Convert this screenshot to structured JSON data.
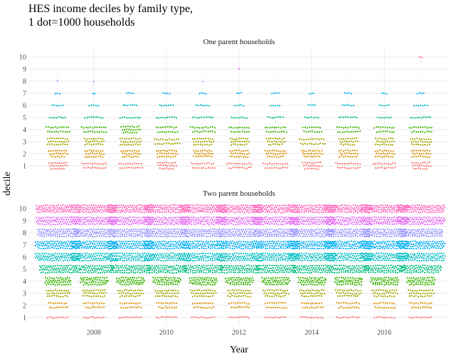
{
  "chart_data": {
    "type": "scatter",
    "title": "HES income deciles by family type,\n1 dot=1000 households",
    "xlabel": "Year",
    "ylabel": "decile",
    "x_ticks": [
      2008,
      2010,
      2012,
      2014,
      2016
    ],
    "years": [
      2007,
      2008,
      2009,
      2010,
      2011,
      2012,
      2013,
      2014,
      2015,
      2016,
      2017
    ],
    "y_ticks": [
      1,
      2,
      3,
      4,
      5,
      6,
      7,
      8,
      9,
      10
    ],
    "xlim": [
      2006.2,
      2017.8
    ],
    "ylim": [
      0.4,
      10.6
    ],
    "grid": true,
    "legend": "none",
    "decile_colors": [
      "#F8766D",
      "#D89000",
      "#A3A500",
      "#39B600",
      "#00BF7D",
      "#00BFC4",
      "#00B0F6",
      "#9590FF",
      "#E76BF3",
      "#FF62BC"
    ],
    "panels": [
      {
        "name": "One parent households",
        "counts_per_decile_per_year": [
          [
            25,
            25,
            30,
            22,
            8,
            6,
            3,
            1,
            0,
            0
          ],
          [
            23,
            27,
            27,
            23,
            9,
            5,
            2,
            1,
            0,
            0
          ],
          [
            22,
            26,
            30,
            25,
            10,
            7,
            4,
            0,
            0,
            0
          ],
          [
            25,
            29,
            24,
            20,
            10,
            7,
            4,
            0,
            0,
            0
          ],
          [
            22,
            27,
            29,
            23,
            10,
            7,
            4,
            1,
            0,
            0
          ],
          [
            23,
            27,
            26,
            19,
            8,
            5,
            3,
            0,
            1,
            0
          ],
          [
            23,
            28,
            25,
            20,
            8,
            5,
            4,
            0,
            0,
            0
          ],
          [
            25,
            28,
            24,
            18,
            7,
            4,
            3,
            0,
            0,
            0
          ],
          [
            23,
            27,
            25,
            22,
            9,
            6,
            4,
            0,
            0,
            0
          ],
          [
            21,
            27,
            27,
            19,
            7,
            5,
            3,
            0,
            0,
            0
          ],
          [
            25,
            27,
            29,
            21,
            10,
            7,
            4,
            0,
            0,
            2
          ]
        ]
      },
      {
        "name": "Two parent households",
        "counts_per_decile_per_year": [
          [
            10,
            18,
            32,
            48,
            68,
            82,
            82,
            75,
            80,
            80
          ],
          [
            10,
            19,
            33,
            50,
            70,
            84,
            84,
            76,
            82,
            82
          ],
          [
            11,
            20,
            34,
            50,
            71,
            85,
            84,
            77,
            82,
            84
          ],
          [
            10,
            19,
            33,
            49,
            71,
            84,
            84,
            76,
            82,
            83
          ],
          [
            11,
            20,
            34,
            50,
            71,
            85,
            85,
            77,
            83,
            84
          ],
          [
            10,
            19,
            33,
            49,
            71,
            84,
            83,
            76,
            82,
            82
          ],
          [
            10,
            20,
            34,
            50,
            72,
            85,
            85,
            77,
            84,
            84
          ],
          [
            11,
            20,
            34,
            50,
            72,
            86,
            85,
            78,
            84,
            85
          ],
          [
            11,
            21,
            34,
            51,
            73,
            86,
            86,
            79,
            84,
            85
          ],
          [
            10,
            20,
            34,
            51,
            73,
            86,
            86,
            79,
            85,
            85
          ],
          [
            11,
            21,
            35,
            51,
            73,
            87,
            86,
            79,
            86,
            86
          ]
        ]
      }
    ]
  }
}
